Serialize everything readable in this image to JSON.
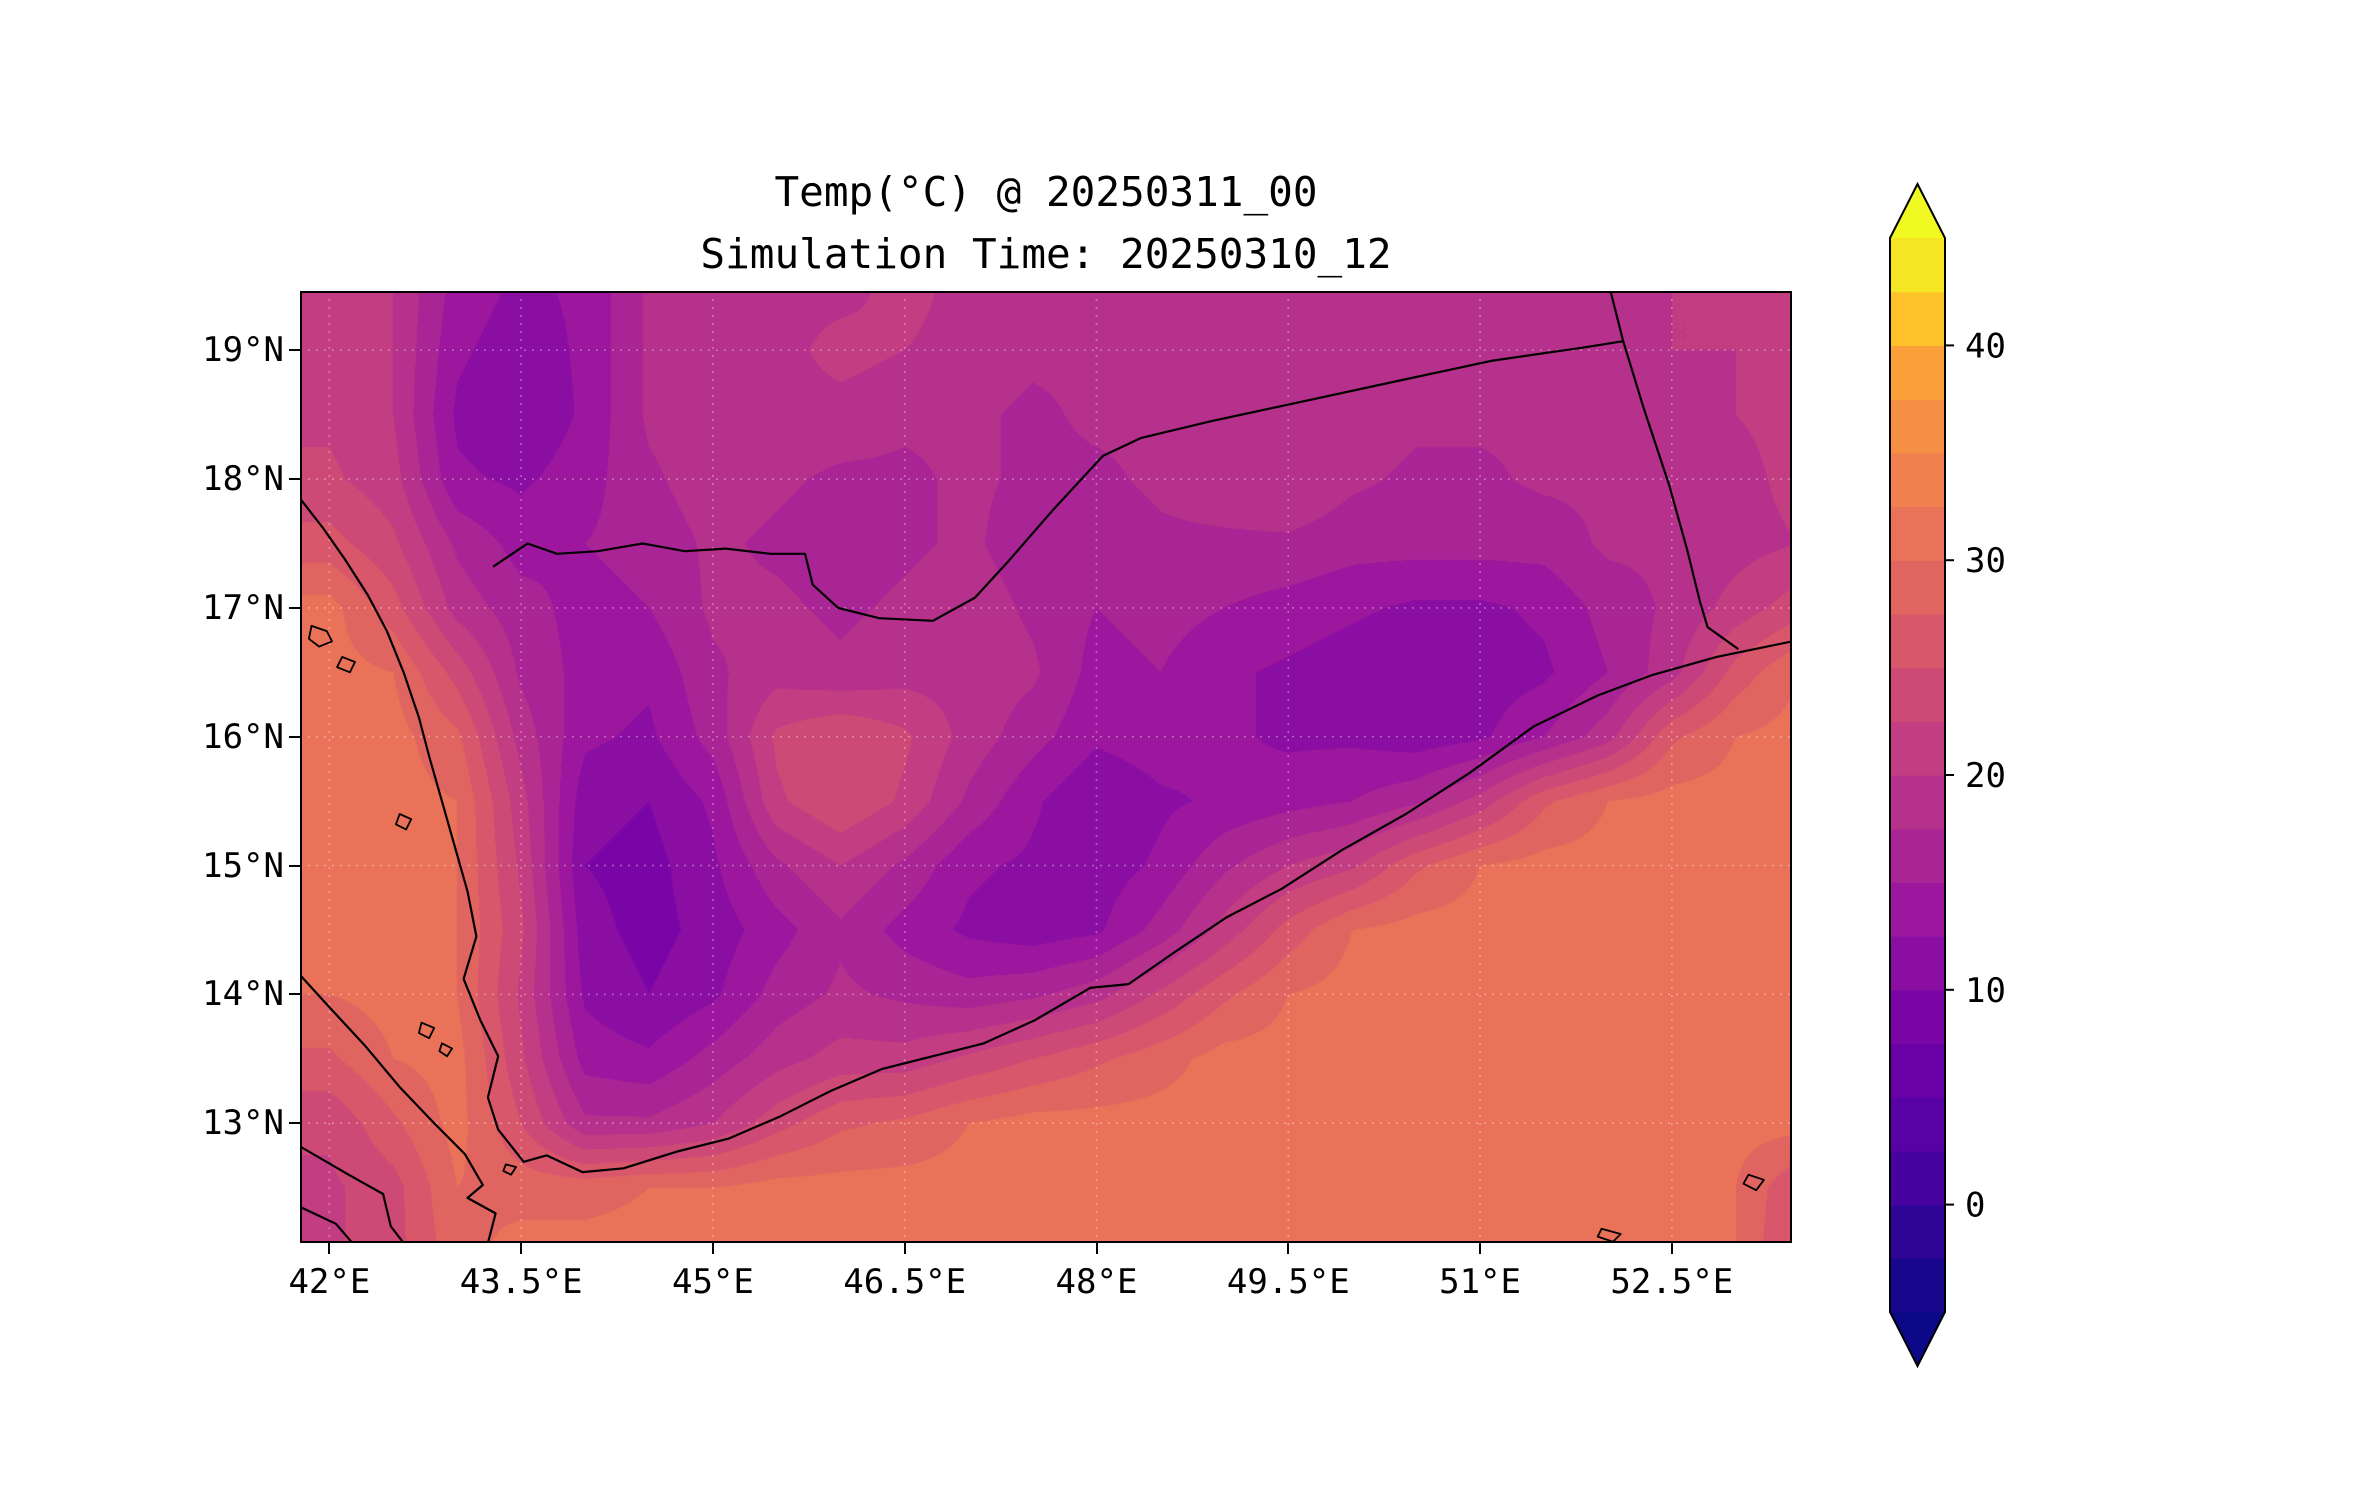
{
  "title": {
    "line1": "Temp(°C) @ 20250311_00",
    "line2": "Simulation Time: 20250310_12"
  },
  "chart_data": {
    "type": "heatmap",
    "title": "Temp(°C) @ 20250311_00",
    "subtitle": "Simulation Time: 20250310_12",
    "variable": "Temperature (°C)",
    "extent": {
      "lon_min": 41.77,
      "lon_max": 53.44,
      "lat_min": 12.07,
      "lat_max": 19.46
    },
    "x_ticks": [
      {
        "value": 42.0,
        "label": "42°E"
      },
      {
        "value": 43.5,
        "label": "43.5°E"
      },
      {
        "value": 45.0,
        "label": "45°E"
      },
      {
        "value": 46.5,
        "label": "46.5°E"
      },
      {
        "value": 48.0,
        "label": "48°E"
      },
      {
        "value": 49.5,
        "label": "49.5°E"
      },
      {
        "value": 51.0,
        "label": "51°E"
      },
      {
        "value": 52.5,
        "label": "52.5°E"
      }
    ],
    "y_ticks": [
      {
        "value": 19,
        "label": "19°N"
      },
      {
        "value": 18,
        "label": "18°N"
      },
      {
        "value": 17,
        "label": "17°N"
      },
      {
        "value": 16,
        "label": "16°N"
      },
      {
        "value": 15,
        "label": "15°N"
      },
      {
        "value": 14,
        "label": "14°N"
      },
      {
        "value": 13,
        "label": "13°N"
      }
    ],
    "colorbar": {
      "colormap": "plasma",
      "vmin": -5,
      "vmax": 45,
      "level_step": 2.5,
      "extend": "both",
      "under_color": "#0d0887",
      "over_color": "#f0f921",
      "ticks": [
        {
          "value": 40,
          "label": "40"
        },
        {
          "value": 30,
          "label": "30"
        },
        {
          "value": 20,
          "label": "20"
        },
        {
          "value": 10,
          "label": "10"
        },
        {
          "value": 0,
          "label": "0"
        }
      ],
      "plasma_stops": [
        [
          0.0,
          13,
          8,
          135
        ],
        [
          0.125,
          70,
          3,
          159
        ],
        [
          0.25,
          114,
          1,
          168
        ],
        [
          0.375,
          156,
          23,
          158
        ],
        [
          0.5,
          189,
          55,
          134
        ],
        [
          0.625,
          216,
          87,
          107
        ],
        [
          0.75,
          237,
          121,
          83
        ],
        [
          0.875,
          251,
          159,
          58
        ],
        [
          0.9375,
          253,
          202,
          38
        ],
        [
          1.0,
          240,
          249,
          33
        ]
      ]
    },
    "grid": {
      "lons": [
        42,
        42.5,
        43,
        43.5,
        44,
        44.5,
        45,
        45.5,
        46,
        46.5,
        47,
        47.5,
        48,
        48.5,
        49,
        49.5,
        50,
        50.5,
        51,
        51.5,
        52,
        52.5,
        53,
        53.5
      ],
      "lats": [
        19.5,
        19,
        18.5,
        18,
        17.5,
        17,
        16.5,
        16,
        15.5,
        15,
        14.5,
        14,
        13.5,
        13,
        12.5,
        12
      ],
      "values": [
        [
          21,
          20,
          14,
          12,
          13,
          18,
          19,
          19,
          19,
          21,
          19,
          18,
          19,
          19,
          19,
          20,
          19,
          19,
          19,
          19,
          20,
          20,
          20,
          22
        ],
        [
          21,
          20,
          13,
          11,
          13,
          18,
          19,
          19,
          21,
          20,
          19,
          18,
          18,
          19,
          19,
          20,
          18,
          19,
          18,
          19,
          19,
          20,
          20,
          22
        ],
        [
          22,
          20,
          12,
          10,
          13,
          18,
          19,
          19,
          19,
          18,
          18,
          17,
          18,
          18,
          20,
          20,
          19,
          18,
          18,
          18,
          19,
          19,
          20,
          21
        ],
        [
          23,
          21,
          13,
          12,
          14,
          17,
          19,
          18,
          17,
          17,
          18,
          17,
          17,
          18,
          19,
          20,
          18,
          17,
          17,
          18,
          18,
          19,
          19,
          21
        ],
        [
          26,
          23,
          17,
          14,
          15,
          16,
          18,
          17,
          16,
          17,
          18,
          16,
          16,
          17,
          17,
          17,
          16,
          16,
          16,
          16,
          18,
          18,
          19,
          20
        ],
        [
          31,
          26,
          19,
          16,
          14,
          15,
          18,
          18,
          17,
          18,
          19,
          17,
          15,
          16,
          15,
          14,
          13,
          12,
          12,
          13,
          16,
          18,
          21,
          24
        ],
        [
          31,
          30,
          24,
          17,
          14,
          13,
          17,
          19,
          18,
          19,
          19,
          18,
          14,
          15,
          13,
          12,
          11,
          10,
          11,
          12,
          15,
          19,
          26,
          30
        ],
        [
          31,
          31,
          28,
          19,
          13,
          12,
          16,
          23,
          25,
          23,
          19,
          16,
          13,
          14,
          13,
          12,
          12,
          11,
          12,
          15,
          19,
          27,
          30,
          31
        ],
        [
          31,
          31,
          30,
          21,
          11,
          10,
          13,
          22,
          25,
          22,
          17,
          13,
          10,
          12,
          13,
          14,
          15,
          17,
          21,
          27,
          30,
          31,
          31,
          31
        ],
        [
          31,
          31,
          30,
          22,
          10,
          9,
          12,
          17,
          20,
          17,
          13,
          12,
          11,
          13,
          17,
          20,
          22,
          27,
          30,
          31,
          31,
          31,
          31,
          31
        ],
        [
          31,
          31,
          30,
          23,
          11,
          9,
          11,
          14,
          17,
          14,
          12,
          11,
          12,
          16,
          21,
          26,
          30,
          31,
          31,
          31,
          31,
          31,
          31,
          31
        ],
        [
          30,
          31,
          30,
          22,
          12,
          10,
          12,
          16,
          18,
          17,
          16,
          17,
          19,
          23,
          27,
          30,
          31,
          31,
          31,
          31,
          31,
          31,
          31,
          31
        ],
        [
          27,
          30,
          31,
          23,
          14,
          13,
          16,
          19,
          21,
          21,
          23,
          25,
          27,
          29,
          31,
          31,
          31,
          31,
          31,
          31,
          31,
          31,
          31,
          31
        ],
        [
          23,
          27,
          31,
          25,
          18,
          18,
          20,
          24,
          27,
          28,
          30,
          31,
          31,
          31,
          31,
          31,
          31,
          31,
          31,
          31,
          31,
          31,
          31,
          31
        ],
        [
          22,
          24,
          30,
          29,
          29,
          30,
          30,
          31,
          31,
          31,
          31,
          31,
          31,
          31,
          31,
          31,
          31,
          31,
          31,
          31,
          31,
          31,
          30,
          25
        ],
        [
          22,
          24,
          29,
          31,
          31,
          31,
          31,
          31,
          31,
          31,
          31,
          31,
          31,
          31,
          31,
          31,
          31,
          31,
          31,
          31,
          31,
          31,
          30,
          24
        ]
      ]
    },
    "borders": [
      {
        "name": "arabia-red-sea-and-aden-coast",
        "points": [
          [
            41.77,
            17.85
          ],
          [
            41.95,
            17.62
          ],
          [
            42.12,
            17.38
          ],
          [
            42.3,
            17.1
          ],
          [
            42.45,
            16.82
          ],
          [
            42.58,
            16.5
          ],
          [
            42.7,
            16.15
          ],
          [
            42.78,
            15.85
          ],
          [
            42.88,
            15.5
          ],
          [
            42.98,
            15.15
          ],
          [
            43.08,
            14.8
          ],
          [
            43.15,
            14.45
          ],
          [
            43.05,
            14.12
          ],
          [
            43.18,
            13.8
          ],
          [
            43.32,
            13.52
          ],
          [
            43.24,
            13.2
          ],
          [
            43.32,
            12.95
          ],
          [
            43.52,
            12.7
          ],
          [
            43.7,
            12.75
          ],
          [
            43.98,
            12.62
          ],
          [
            44.3,
            12.65
          ],
          [
            44.72,
            12.78
          ],
          [
            45.12,
            12.88
          ],
          [
            45.52,
            13.05
          ],
          [
            45.92,
            13.25
          ],
          [
            46.32,
            13.42
          ],
          [
            46.72,
            13.52
          ],
          [
            47.12,
            13.62
          ],
          [
            47.52,
            13.8
          ],
          [
            47.95,
            14.05
          ],
          [
            48.25,
            14.08
          ],
          [
            48.6,
            14.32
          ],
          [
            49.02,
            14.6
          ],
          [
            49.45,
            14.82
          ],
          [
            49.92,
            15.12
          ],
          [
            50.42,
            15.4
          ],
          [
            50.92,
            15.72
          ],
          [
            51.42,
            16.08
          ],
          [
            51.92,
            16.32
          ],
          [
            52.35,
            16.48
          ],
          [
            52.85,
            16.62
          ],
          [
            53.44,
            16.74
          ]
        ]
      },
      {
        "name": "saudi-yemen-border",
        "points": [
          [
            43.28,
            17.32
          ],
          [
            43.55,
            17.5
          ],
          [
            43.78,
            17.42
          ],
          [
            44.1,
            17.44
          ],
          [
            44.45,
            17.5
          ],
          [
            44.78,
            17.44
          ],
          [
            45.1,
            17.46
          ],
          [
            45.45,
            17.42
          ],
          [
            45.72,
            17.42
          ],
          [
            45.78,
            17.18
          ],
          [
            45.98,
            17.0
          ],
          [
            46.3,
            16.92
          ],
          [
            46.72,
            16.9
          ],
          [
            47.05,
            17.08
          ],
          [
            47.3,
            17.35
          ],
          [
            47.65,
            17.75
          ],
          [
            48.05,
            18.18
          ],
          [
            48.35,
            18.32
          ],
          [
            48.9,
            18.45
          ],
          [
            49.6,
            18.6
          ],
          [
            50.3,
            18.75
          ],
          [
            51.1,
            18.92
          ],
          [
            51.8,
            19.02
          ],
          [
            52.12,
            19.07
          ]
        ]
      },
      {
        "name": "yemen-oman-border",
        "points": [
          [
            52.12,
            19.07
          ],
          [
            52.28,
            18.55
          ],
          [
            52.48,
            17.95
          ],
          [
            52.62,
            17.45
          ],
          [
            52.72,
            17.05
          ],
          [
            52.78,
            16.85
          ],
          [
            53.02,
            16.68
          ]
        ]
      },
      {
        "name": "saudi-oman-border",
        "points": [
          [
            52.12,
            19.07
          ],
          [
            52.02,
            19.46
          ]
        ]
      },
      {
        "name": "africa-red-sea-coast",
        "points": [
          [
            41.77,
            14.15
          ],
          [
            42.0,
            13.9
          ],
          [
            42.28,
            13.6
          ],
          [
            42.55,
            13.28
          ],
          [
            42.82,
            13.0
          ],
          [
            43.06,
            12.76
          ],
          [
            43.2,
            12.52
          ],
          [
            43.08,
            12.42
          ],
          [
            43.3,
            12.3
          ],
          [
            43.24,
            12.07
          ]
        ]
      },
      {
        "name": "africa-border",
        "points": [
          [
            41.77,
            12.82
          ],
          [
            42.15,
            12.6
          ],
          [
            42.42,
            12.45
          ],
          [
            42.48,
            12.2
          ],
          [
            42.58,
            12.07
          ]
        ]
      },
      {
        "name": "africa-border-2",
        "points": [
          [
            41.77,
            12.35
          ],
          [
            42.05,
            12.22
          ],
          [
            42.18,
            12.07
          ]
        ]
      }
    ],
    "islands": [
      {
        "name": "farasan-island",
        "points": [
          [
            41.86,
            16.86
          ],
          [
            41.98,
            16.82
          ],
          [
            42.02,
            16.74
          ],
          [
            41.92,
            16.7
          ],
          [
            41.84,
            16.76
          ]
        ]
      },
      {
        "name": "farasan-island-2",
        "points": [
          [
            42.1,
            16.62
          ],
          [
            42.2,
            16.58
          ],
          [
            42.16,
            16.5
          ],
          [
            42.06,
            16.54
          ]
        ]
      },
      {
        "name": "kamaran-island",
        "points": [
          [
            42.55,
            15.4
          ],
          [
            42.64,
            15.36
          ],
          [
            42.6,
            15.28
          ],
          [
            42.52,
            15.32
          ]
        ]
      },
      {
        "name": "hanish-island",
        "points": [
          [
            42.72,
            13.78
          ],
          [
            42.82,
            13.74
          ],
          [
            42.78,
            13.66
          ],
          [
            42.7,
            13.7
          ]
        ]
      },
      {
        "name": "hanish-island-2",
        "points": [
          [
            42.88,
            13.62
          ],
          [
            42.96,
            13.58
          ],
          [
            42.92,
            13.52
          ],
          [
            42.86,
            13.56
          ]
        ]
      },
      {
        "name": "perim-island",
        "points": [
          [
            43.38,
            12.68
          ],
          [
            43.46,
            12.66
          ],
          [
            43.42,
            12.6
          ],
          [
            43.36,
            12.63
          ]
        ]
      },
      {
        "name": "island-se-1",
        "points": [
          [
            51.95,
            12.18
          ],
          [
            52.1,
            12.14
          ],
          [
            52.04,
            12.08
          ],
          [
            51.92,
            12.12
          ]
        ]
      },
      {
        "name": "island-se-2",
        "points": [
          [
            53.1,
            12.6
          ],
          [
            53.22,
            12.56
          ],
          [
            53.16,
            12.48
          ],
          [
            53.06,
            12.53
          ]
        ]
      }
    ],
    "layout_hints": {
      "grid_on": true,
      "gridline_color": "rgba(255,255,255,0.35)",
      "border_line_color": "#000000",
      "background": "#ffffff"
    }
  }
}
